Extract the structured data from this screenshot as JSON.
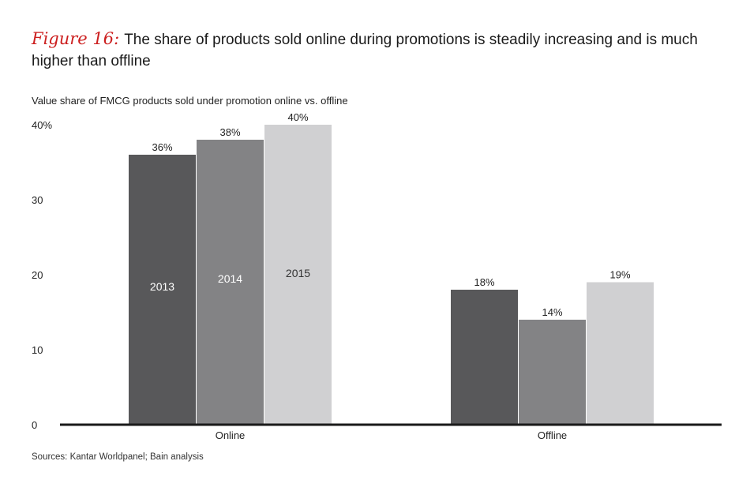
{
  "figure": {
    "label": "Figure 16:",
    "title": "The share of products sold online during promotions is steadily increasing and is much higher than offline"
  },
  "source": "Sources: Kantar Worldpanel; Bain analysis",
  "colors": {
    "s2013": "#58585a",
    "s2014": "#838385",
    "s2015": "#d0d0d2",
    "accent": "#cc1f1f",
    "axis": "#1a1a1a"
  },
  "chart_data": {
    "type": "bar",
    "title": "Value share of FMCG products sold under promotion online vs. offline",
    "categories": [
      "Online",
      "Offline"
    ],
    "series": [
      {
        "name": "2013",
        "values": [
          36,
          18
        ],
        "labels": [
          "36%",
          "18%"
        ]
      },
      {
        "name": "2014",
        "values": [
          38,
          14
        ],
        "labels": [
          "38%",
          "14%"
        ]
      },
      {
        "name": "2015",
        "values": [
          40,
          19
        ],
        "labels": [
          "40%",
          "19%"
        ]
      }
    ],
    "yticks": [
      {
        "value": 0,
        "label": "0"
      },
      {
        "value": 10,
        "label": "10"
      },
      {
        "value": 20,
        "label": "20"
      },
      {
        "value": 30,
        "label": "30"
      },
      {
        "value": 40,
        "label": "40%"
      }
    ],
    "ylim": [
      0,
      40
    ],
    "xlabel": "",
    "ylabel": "",
    "legend": "in-bar labels"
  }
}
